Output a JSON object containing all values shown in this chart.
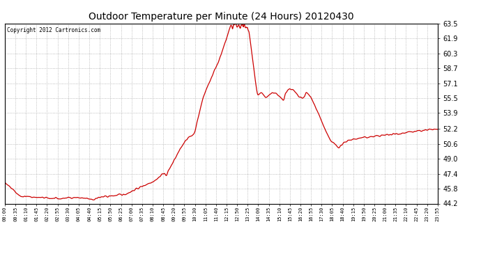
{
  "title": "Outdoor Temperature per Minute (24 Hours) 20120430",
  "copyright_text": "Copyright 2012 Cartronics.com",
  "line_color": "#cc0000",
  "background_color": "#ffffff",
  "plot_bg_color": "#ffffff",
  "grid_color": "#aaaaaa",
  "yticks": [
    44.2,
    45.8,
    47.4,
    49.0,
    50.6,
    52.2,
    53.9,
    55.5,
    57.1,
    58.7,
    60.3,
    61.9,
    63.5
  ],
  "ylim": [
    44.2,
    63.5
  ],
  "xtick_labels": [
    "00:00",
    "00:35",
    "01:10",
    "01:45",
    "02:20",
    "02:55",
    "03:30",
    "04:05",
    "04:40",
    "05:15",
    "05:50",
    "06:25",
    "07:00",
    "07:35",
    "08:10",
    "08:45",
    "09:20",
    "09:55",
    "10:30",
    "11:05",
    "11:40",
    "12:15",
    "12:50",
    "13:25",
    "14:00",
    "14:35",
    "15:10",
    "15:45",
    "16:20",
    "16:55",
    "17:30",
    "18:05",
    "18:40",
    "19:15",
    "19:50",
    "20:25",
    "21:00",
    "21:35",
    "22:10",
    "22:45",
    "23:20",
    "23:55"
  ],
  "title_fontsize": 10,
  "ytick_fontsize": 7,
  "xtick_fontsize": 5,
  "linewidth": 0.9
}
